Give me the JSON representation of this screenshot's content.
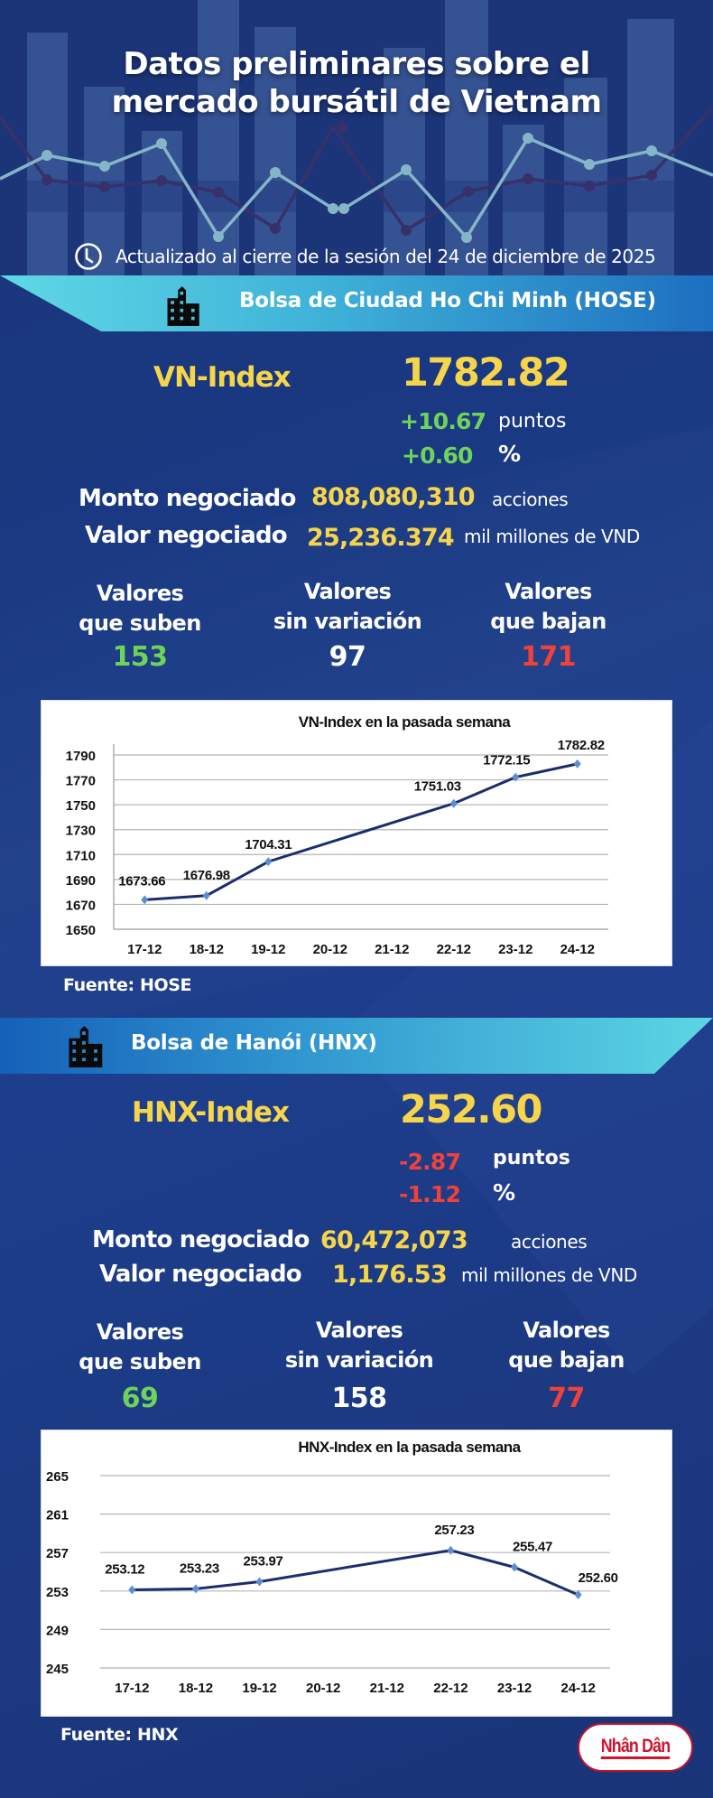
{
  "header": {
    "title_line1": "Datos preliminares sobre el",
    "title_line2": "mercado bursátil de Vietnam",
    "updated_icon": "clock-icon",
    "updated_text": "Actualizado al cierre de la sesión del 24 de diciembre de 2025"
  },
  "colors": {
    "background": "#1a3478",
    "accent_yellow": "#f7d54a",
    "up_green": "#6fd35a",
    "down_red": "#f0413b",
    "banner_cyan": "#5fd8e6",
    "banner_blue": "#1d6fc0",
    "chart_line": "#1a2e6e",
    "chart_marker": "#5b8fd0",
    "logo_red": "#d0142c"
  },
  "hose": {
    "banner_icon": "building-icon",
    "banner_title": "Bolsa de Ciudad Ho Chi Minh (HOSE)",
    "index_name": "VN-Index",
    "index_value": "1782.82",
    "change_points": "+10.67",
    "change_points_unit": "puntos",
    "change_percent": "+0.60",
    "change_percent_unit": "%",
    "volume_label": "Monto negociado",
    "volume_value": "808,080,310",
    "volume_unit": "acciones",
    "value_label": "Valor negociado",
    "value_value": "25,236.374",
    "value_unit": "mil millones de VND",
    "advancers_label_1": "Valores",
    "advancers_label_2": "que suben",
    "advancers": "153",
    "unchanged_label_1": "Valores",
    "unchanged_label_2": "sin variación",
    "unchanged": "97",
    "decliners_label_1": "Valores",
    "decliners_label_2": "que bajan",
    "decliners": "171",
    "source": "Fuente: HOSE"
  },
  "hnx": {
    "banner_icon": "building-icon",
    "banner_title": "Bolsa de Hanói (HNX)",
    "index_name": "HNX-Index",
    "index_value": "252.60",
    "change_points": "-2.87",
    "change_points_unit": "puntos",
    "change_percent": "-1.12",
    "change_percent_unit": "%",
    "volume_label": "Monto negociado",
    "volume_value": "60,472,073",
    "volume_unit": "acciones",
    "value_label": "Valor negociado",
    "value_value": "1,176.53",
    "value_unit": "mil millones de VND",
    "advancers_label_1": "Valores",
    "advancers_label_2": "que suben",
    "advancers": "69",
    "unchanged_label_1": "Valores",
    "unchanged_label_2": "sin variación",
    "unchanged": "158",
    "decliners_label_1": "Valores",
    "decliners_label_2": "que bajan",
    "decliners": "77",
    "source": "Fuente:  HNX"
  },
  "footer": {
    "logo_text": "Nhân Dân"
  },
  "chart_data": [
    {
      "type": "line",
      "title": "VN-Index en la pasada semana",
      "categories": [
        "17-12",
        "18-12",
        "19-12",
        "20-12",
        "21-12",
        "22-12",
        "23-12",
        "24-12"
      ],
      "series": [
        {
          "name": "VN-Index",
          "values": [
            1673.66,
            1676.98,
            1704.31,
            null,
            null,
            1751.03,
            1772.15,
            1782.82
          ]
        }
      ],
      "data_labels": [
        "1673.66",
        "1676.98",
        "1704.31",
        "",
        "",
        "1751.03",
        "1772.15",
        "1782.82"
      ],
      "xlabel": "",
      "ylabel": "",
      "ylim": [
        1650,
        1790
      ],
      "yticks": [
        1650,
        1670,
        1690,
        1710,
        1730,
        1750,
        1770,
        1790
      ],
      "grid": true,
      "legend": "none",
      "note": "Line connects 19-12 directly to 22-12 (no sessions 20-12, 21-12)"
    },
    {
      "type": "line",
      "title": "HNX-Index en la pasada semana",
      "categories": [
        "17-12",
        "18-12",
        "19-12",
        "20-12",
        "21-12",
        "22-12",
        "23-12",
        "24-12"
      ],
      "series": [
        {
          "name": "HNX-Index",
          "values": [
            253.12,
            253.23,
            253.97,
            null,
            null,
            257.23,
            255.47,
            252.6
          ]
        }
      ],
      "data_labels": [
        "253.12",
        "253.23",
        "253.97",
        "",
        "",
        "257.23",
        "255.47",
        "252.60"
      ],
      "xlabel": "",
      "ylabel": "",
      "ylim": [
        245,
        265
      ],
      "yticks": [
        245,
        249,
        253,
        257,
        261,
        265
      ],
      "grid": true,
      "legend": "none",
      "note": "Line connects 19-12 directly to 22-12 (no sessions 20-12, 21-12)"
    }
  ]
}
